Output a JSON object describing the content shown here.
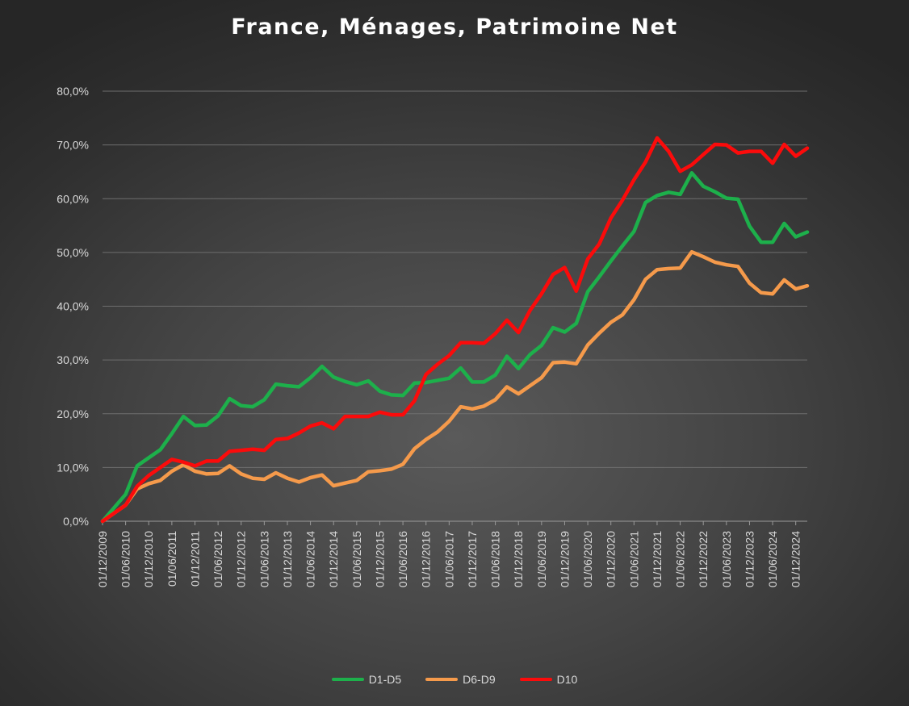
{
  "chart_data": {
    "type": "line",
    "title": "France, Ménages, Patrimoine Net",
    "xlabel": "",
    "ylabel": "",
    "ylim": [
      0,
      80
    ],
    "y_ticks": [
      "0,0%",
      "10,0%",
      "20,0%",
      "30,0%",
      "40,0%",
      "50,0%",
      "60,0%",
      "70,0%",
      "80,0%"
    ],
    "x_tick_labels": [
      "01/12/2009",
      "01/06/2010",
      "01/12/2010",
      "01/06/2011",
      "01/12/2011",
      "01/06/2012",
      "01/12/2012",
      "01/06/2013",
      "01/12/2013",
      "01/06/2014",
      "01/12/2014",
      "01/06/2015",
      "01/12/2015",
      "01/06/2016",
      "01/12/2016",
      "01/06/2017",
      "01/12/2017",
      "01/06/2018",
      "01/12/2018",
      "01/06/2019",
      "01/12/2019",
      "01/06/2020",
      "01/12/2020",
      "01/06/2021",
      "01/12/2021",
      "01/06/2022",
      "01/12/2022",
      "01/06/2023",
      "01/12/2023",
      "01/06/2024",
      "01/12/2024"
    ],
    "points_per_tick": 2,
    "grid": true,
    "legend_position": "bottom",
    "series": [
      {
        "name": "D1-D5",
        "color": "#1db04b",
        "values": [
          0.0,
          2.5,
          5.0,
          10.3,
          11.8,
          13.3,
          16.3,
          19.5,
          17.8,
          17.9,
          19.6,
          22.8,
          21.5,
          21.3,
          22.6,
          25.5,
          25.2,
          25.0,
          26.7,
          28.8,
          26.8,
          26.0,
          25.4,
          26.1,
          24.2,
          23.5,
          23.4,
          25.7,
          25.8,
          26.2,
          26.6,
          28.5,
          25.9,
          25.9,
          27.2,
          30.7,
          28.4,
          31.0,
          32.7,
          36.0,
          35.2,
          36.8,
          42.7,
          45.5,
          48.4,
          51.2,
          53.9,
          59.3,
          60.6,
          61.2,
          60.8,
          64.8,
          62.3,
          61.3,
          60.1,
          59.9,
          54.9,
          51.9,
          51.9,
          55.4,
          52.9,
          53.8
        ]
      },
      {
        "name": "D6-D9",
        "color": "#f59a4b",
        "values": [
          0.0,
          1.5,
          3.0,
          6.0,
          7.0,
          7.6,
          9.3,
          10.5,
          9.3,
          8.8,
          8.9,
          10.3,
          8.8,
          8.0,
          7.8,
          9.0,
          8.0,
          7.3,
          8.1,
          8.6,
          6.6,
          7.1,
          7.6,
          9.2,
          9.4,
          9.7,
          10.6,
          13.5,
          15.2,
          16.6,
          18.6,
          21.3,
          20.9,
          21.4,
          22.6,
          25.0,
          23.7,
          25.2,
          26.7,
          29.5,
          29.6,
          29.3,
          32.8,
          35.0,
          37.0,
          38.4,
          41.2,
          45.0,
          46.8,
          47.0,
          47.1,
          50.1,
          49.2,
          48.2,
          47.7,
          47.4,
          44.3,
          42.5,
          42.3,
          44.9,
          43.2,
          43.8
        ]
      },
      {
        "name": "D10",
        "color": "#fb0b0b",
        "values": [
          0.0,
          1.5,
          3.0,
          6.5,
          8.5,
          10.0,
          11.5,
          11.0,
          10.3,
          11.2,
          11.2,
          13.0,
          13.2,
          13.4,
          13.2,
          15.2,
          15.4,
          16.4,
          17.7,
          18.3,
          17.2,
          19.5,
          19.5,
          19.5,
          20.3,
          19.8,
          19.8,
          22.4,
          27.3,
          29.2,
          30.8,
          33.2,
          33.2,
          33.1,
          34.9,
          37.4,
          35.1,
          39.2,
          42.3,
          45.9,
          47.2,
          42.8,
          48.8,
          51.6,
          56.4,
          59.7,
          63.5,
          66.8,
          71.3,
          68.8,
          65.1,
          66.3,
          68.2,
          70.1,
          70.0,
          68.5,
          68.8,
          68.8,
          66.6,
          70.1,
          67.9,
          69.4
        ]
      }
    ]
  }
}
